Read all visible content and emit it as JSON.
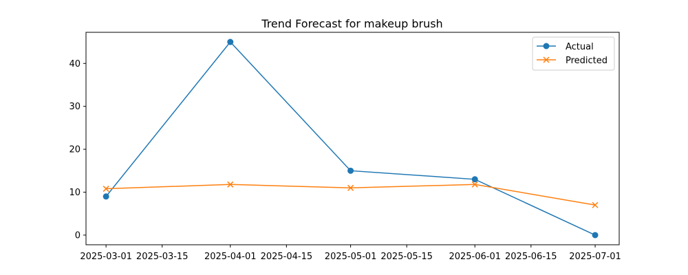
{
  "chart_data": {
    "type": "line",
    "title": "Trend Forecast for makeup brush",
    "xlabel": "",
    "ylabel": "",
    "x": [
      "2025-03-01",
      "2025-04-01",
      "2025-05-01",
      "2025-06-01",
      "2025-07-01"
    ],
    "series": [
      {
        "name": "Actual",
        "color": "#1f77b4",
        "marker": "circle",
        "values": [
          9,
          45,
          15,
          13,
          0
        ]
      },
      {
        "name": "Predicted",
        "color": "#ff7f0e",
        "marker": "x",
        "values": [
          10.8,
          11.8,
          11.0,
          11.8,
          7.0
        ]
      }
    ],
    "x_ticks": [
      "2025-03-01",
      "2025-03-15",
      "2025-04-01",
      "2025-04-15",
      "2025-05-01",
      "2025-05-15",
      "2025-06-01",
      "2025-06-15",
      "2025-07-01"
    ],
    "y_ticks": [
      0,
      10,
      20,
      30,
      40
    ],
    "xlim": [
      "2025-02-24",
      "2025-07-07"
    ],
    "ylim": [
      -2.25,
      47.25
    ],
    "grid": false,
    "legend_position": "top-right"
  }
}
